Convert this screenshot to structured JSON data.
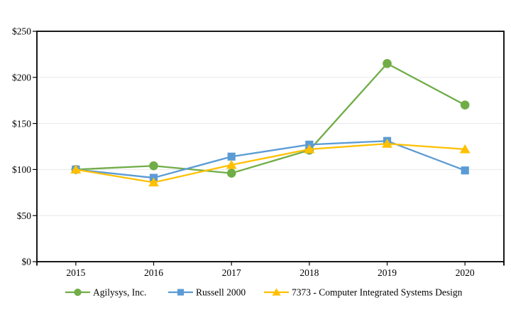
{
  "chart_data": {
    "type": "line",
    "title": "",
    "categories": [
      "2015",
      "2016",
      "2017",
      "2018",
      "2019",
      "2020"
    ],
    "series": [
      {
        "name": "Agilysys, Inc.",
        "marker": "circle",
        "color": "#70AD47",
        "values": [
          100,
          104,
          96,
          121,
          215,
          170
        ]
      },
      {
        "name": "Russell 2000",
        "marker": "square",
        "color": "#5B9BD5",
        "values": [
          100,
          91,
          114,
          127,
          131,
          99
        ]
      },
      {
        "name": "7373 - Computer Integrated Systems Design",
        "marker": "triangle",
        "color": "#FFC000",
        "values": [
          100,
          86,
          105,
          122,
          128,
          122
        ]
      }
    ],
    "y_axis": {
      "min": 0,
      "max": 250,
      "step": 50,
      "tick_labels": [
        "$0",
        "$50",
        "$100",
        "$150",
        "$200",
        "$250"
      ]
    },
    "x_axis": {
      "tick_labels": [
        "2015",
        "2016",
        "2017",
        "2018",
        "2019",
        "2020"
      ]
    },
    "grid": "horizontal",
    "grid_color": "#E8E8E8",
    "axis_color": "#000000",
    "legend_position": "bottom"
  }
}
